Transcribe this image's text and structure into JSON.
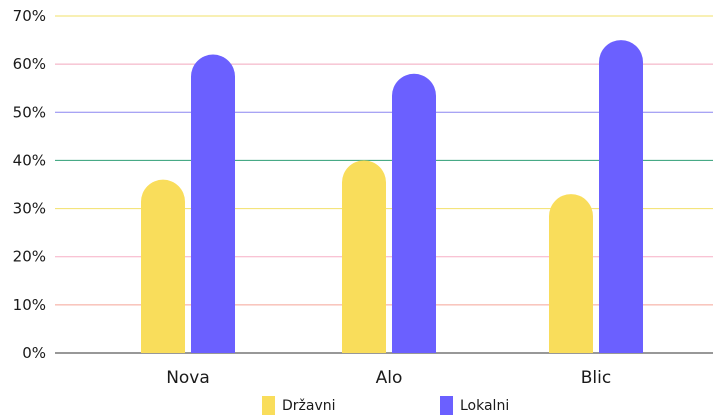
{
  "chart_data": {
    "type": "bar",
    "categories": [
      "Nova",
      "Alo",
      "Blic"
    ],
    "series": [
      {
        "name": "Državni",
        "values": [
          36,
          40,
          33
        ],
        "color": "#F9DD5B"
      },
      {
        "name": "Lokalni",
        "values": [
          62,
          58,
          65
        ],
        "color": "#6B60FF"
      }
    ],
    "ylim": [
      0,
      70
    ],
    "yticks": [
      "0%",
      "10%",
      "20%",
      "30%",
      "40%",
      "50%",
      "60%",
      "70%"
    ],
    "grid": true,
    "grid_colors": [
      "#777777",
      "#F5A497",
      "#F7AFC6",
      "#F2E06A",
      "#2E9E74",
      "#8C85F0",
      "#F2A6BE",
      "#F2E06A"
    ],
    "legend_position": "bottom-center"
  }
}
